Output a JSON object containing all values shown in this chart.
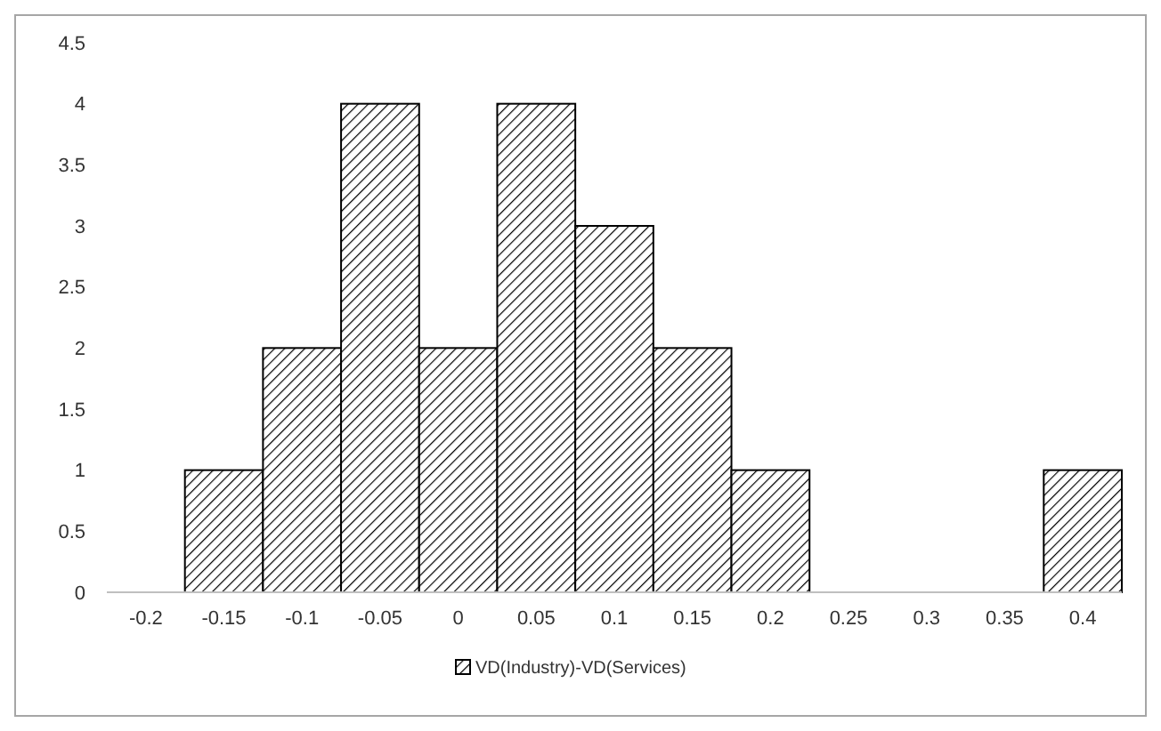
{
  "chart_data": {
    "type": "bar",
    "categories": [
      "-0.2",
      "-0.15",
      "-0.1",
      "-0.05",
      "0",
      "0.05",
      "0.1",
      "0.15",
      "0.2",
      "0.25",
      "0.3",
      "0.35",
      "0.4"
    ],
    "series": [
      {
        "name": "VD(Industry)-VD(Services)",
        "color": "#000000",
        "values": [
          0,
          1,
          2,
          4,
          2,
          4,
          3,
          2,
          1,
          0,
          0,
          0,
          1
        ]
      }
    ],
    "ylim": [
      0,
      4.5
    ],
    "yticks": [
      0,
      0.5,
      1,
      1.5,
      2,
      2.5,
      3,
      3.5,
      4,
      4.5
    ],
    "grid": false,
    "legend": "bottom"
  }
}
